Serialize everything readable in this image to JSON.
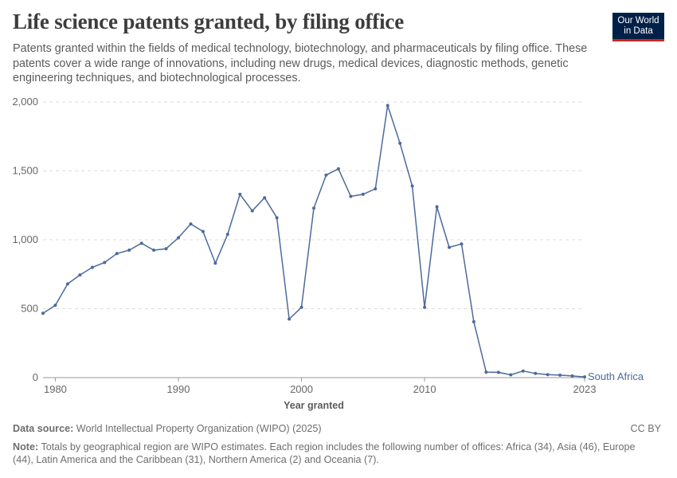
{
  "header": {
    "title": "Life science patents granted, by filing office",
    "subtitle": "Patents granted within the fields of medical technology, biotechnology, and pharmaceuticals by filing office. These patents cover a wide range of innovations, including new drugs, medical devices, diagnostic methods, genetic engineering techniques, and biotechnological processes."
  },
  "logo": {
    "line1": "Our World",
    "line2": "in Data"
  },
  "footer": {
    "source_label": "Data source:",
    "source_text": "World Intellectual Property Organization (WIPO) (2025)",
    "license": "CC BY",
    "note_label": "Note:",
    "note_text": "Totals by geographical region are WIPO estimates. Each region includes the following number of offices: Africa (34), Asia (46), Europe (44), Latin America and the Caribbean (31), Northern America (2) and Oceania (7)."
  },
  "colors": {
    "series": "#4c6a9c",
    "grid": "#dddddd",
    "axis": "#666666"
  },
  "chart_data": {
    "type": "line",
    "title": "Life science patents granted, by filing office",
    "xlabel": "Year granted",
    "ylabel": "",
    "xlim": [
      1979,
      2023
    ],
    "ylim": [
      0,
      2000
    ],
    "x_ticks": [
      "1980",
      "1990",
      "2000",
      "2010",
      "2023"
    ],
    "y_ticks": [
      "0",
      "500",
      "1,000",
      "1,500",
      "2,000"
    ],
    "grid": "horizontal dashed",
    "series": [
      {
        "name": "South Africa",
        "x": [
          1979,
          1980,
          1981,
          1982,
          1983,
          1984,
          1985,
          1986,
          1987,
          1988,
          1989,
          1990,
          1991,
          1992,
          1993,
          1994,
          1995,
          1996,
          1997,
          1998,
          1999,
          2000,
          2001,
          2002,
          2003,
          2004,
          2005,
          2006,
          2007,
          2008,
          2009,
          2010,
          2011,
          2012,
          2013,
          2014,
          2015,
          2016,
          2017,
          2018,
          2019,
          2020,
          2021,
          2022,
          2023
        ],
        "values": [
          467,
          525,
          680,
          745,
          800,
          835,
          900,
          925,
          975,
          925,
          935,
          1015,
          1115,
          1060,
          830,
          1040,
          1330,
          1210,
          1305,
          1160,
          425,
          510,
          1230,
          1470,
          1515,
          1315,
          1330,
          1370,
          1975,
          1700,
          1390,
          510,
          1240,
          945,
          970,
          405,
          40,
          38,
          20,
          48,
          30,
          22,
          18,
          12,
          5
        ]
      }
    ]
  }
}
